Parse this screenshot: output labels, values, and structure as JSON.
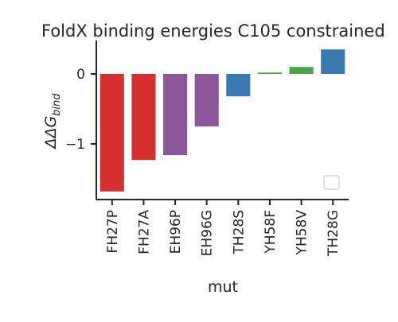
{
  "chart_data": {
    "type": "bar",
    "title": "FoldX binding energies C105 constrained",
    "xlabel": "mut",
    "ylabel_main": "ΔΔG",
    "ylabel_sub": "bind",
    "categories": [
      "FH27P",
      "FH27A",
      "EH96P",
      "EH96G",
      "TH28S",
      "YH58F",
      "YH58V",
      "TH28G"
    ],
    "values": [
      -1.68,
      -1.23,
      -1.16,
      -0.75,
      -0.32,
      0.02,
      0.1,
      0.35
    ],
    "colors": [
      "#d62f2f",
      "#d62f2f",
      "#8c569a",
      "#8c569a",
      "#3b78b0",
      "#4aa548",
      "#4aa548",
      "#3b78b0"
    ],
    "yticks": [
      0,
      -1
    ],
    "ytick_labels": [
      "0",
      "−1"
    ],
    "ylim": [
      -1.8,
      0.45
    ],
    "grid": false,
    "legend": "lower-right (empty)"
  }
}
